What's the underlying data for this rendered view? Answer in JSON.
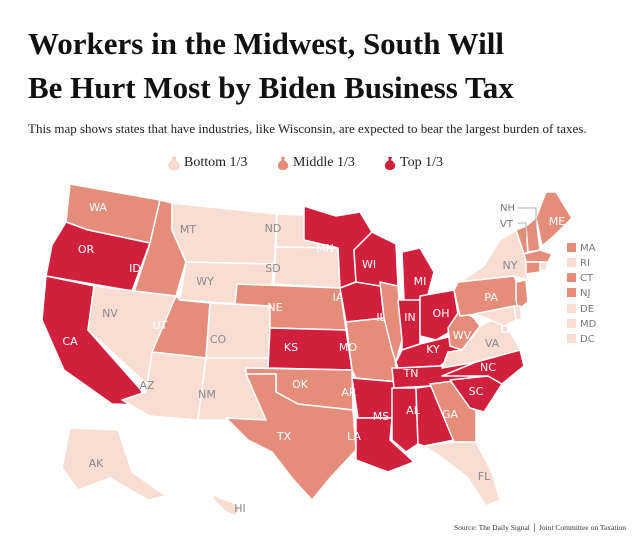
{
  "title_line1": "Workers in the Midwest, South Will",
  "title_line2": "Be Hurt Most by Biden Business Tax",
  "subtitle": "This map shows states that have industries, like Wisconsin, are expected to bear the largest burden of taxes.",
  "legend": [
    {
      "label": "Bottom 1/3",
      "color": "#f8ddd3",
      "icon": "money-bag-icon"
    },
    {
      "label": "Middle 1/3",
      "color": "#e48d7b",
      "icon": "money-bag-icon"
    },
    {
      "label": "Top 1/3",
      "color": "#d11f3e",
      "icon": "money-bag-icon"
    }
  ],
  "colors": {
    "bottom": "#f8ddd3",
    "middle": "#e48d7b",
    "top": "#d11f3e",
    "label_light": "#8a8a8a",
    "label_dark": "#ffffff"
  },
  "states": [
    {
      "abbr": "WA",
      "tier": "middle"
    },
    {
      "abbr": "OR",
      "tier": "top"
    },
    {
      "abbr": "CA",
      "tier": "top"
    },
    {
      "abbr": "ID",
      "tier": "middle"
    },
    {
      "abbr": "NV",
      "tier": "bottom"
    },
    {
      "abbr": "MT",
      "tier": "bottom"
    },
    {
      "abbr": "WY",
      "tier": "bottom"
    },
    {
      "abbr": "UT",
      "tier": "middle"
    },
    {
      "abbr": "AZ",
      "tier": "bottom"
    },
    {
      "abbr": "CO",
      "tier": "bottom"
    },
    {
      "abbr": "NM",
      "tier": "bottom"
    },
    {
      "abbr": "ND",
      "tier": "bottom"
    },
    {
      "abbr": "SD",
      "tier": "bottom"
    },
    {
      "abbr": "NE",
      "tier": "middle"
    },
    {
      "abbr": "KS",
      "tier": "top"
    },
    {
      "abbr": "OK",
      "tier": "middle"
    },
    {
      "abbr": "TX",
      "tier": "middle"
    },
    {
      "abbr": "MN",
      "tier": "top"
    },
    {
      "abbr": "IA",
      "tier": "top"
    },
    {
      "abbr": "MO",
      "tier": "middle"
    },
    {
      "abbr": "AR",
      "tier": "top"
    },
    {
      "abbr": "LA",
      "tier": "top"
    },
    {
      "abbr": "WI",
      "tier": "top"
    },
    {
      "abbr": "IL",
      "tier": "middle"
    },
    {
      "abbr": "MI",
      "tier": "top"
    },
    {
      "abbr": "IN",
      "tier": "top"
    },
    {
      "abbr": "OH",
      "tier": "top"
    },
    {
      "abbr": "KY",
      "tier": "top"
    },
    {
      "abbr": "TN",
      "tier": "top"
    },
    {
      "abbr": "MS",
      "tier": "top"
    },
    {
      "abbr": "AL",
      "tier": "top"
    },
    {
      "abbr": "GA",
      "tier": "middle"
    },
    {
      "abbr": "FL",
      "tier": "bottom"
    },
    {
      "abbr": "SC",
      "tier": "top"
    },
    {
      "abbr": "NC",
      "tier": "top"
    },
    {
      "abbr": "VA",
      "tier": "bottom"
    },
    {
      "abbr": "WV",
      "tier": "middle"
    },
    {
      "abbr": "PA",
      "tier": "middle"
    },
    {
      "abbr": "NY",
      "tier": "bottom"
    },
    {
      "abbr": "VT",
      "tier": "middle"
    },
    {
      "abbr": "NH",
      "tier": "middle"
    },
    {
      "abbr": "ME",
      "tier": "middle"
    },
    {
      "abbr": "MA",
      "tier": "middle"
    },
    {
      "abbr": "RI",
      "tier": "bottom"
    },
    {
      "abbr": "CT",
      "tier": "middle"
    },
    {
      "abbr": "NJ",
      "tier": "middle"
    },
    {
      "abbr": "DE",
      "tier": "bottom"
    },
    {
      "abbr": "MD",
      "tier": "bottom"
    },
    {
      "abbr": "DC",
      "tier": "bottom"
    },
    {
      "abbr": "AK",
      "tier": "bottom"
    },
    {
      "abbr": "HI",
      "tier": "bottom"
    }
  ],
  "small_state_labels": [
    "MA",
    "RI",
    "CT",
    "NJ",
    "DE",
    "MD",
    "DC"
  ],
  "northeast_callouts": [
    "NH",
    "VT"
  ],
  "source": "Source: The Daily Signal │ Joint Committee on Taxation"
}
